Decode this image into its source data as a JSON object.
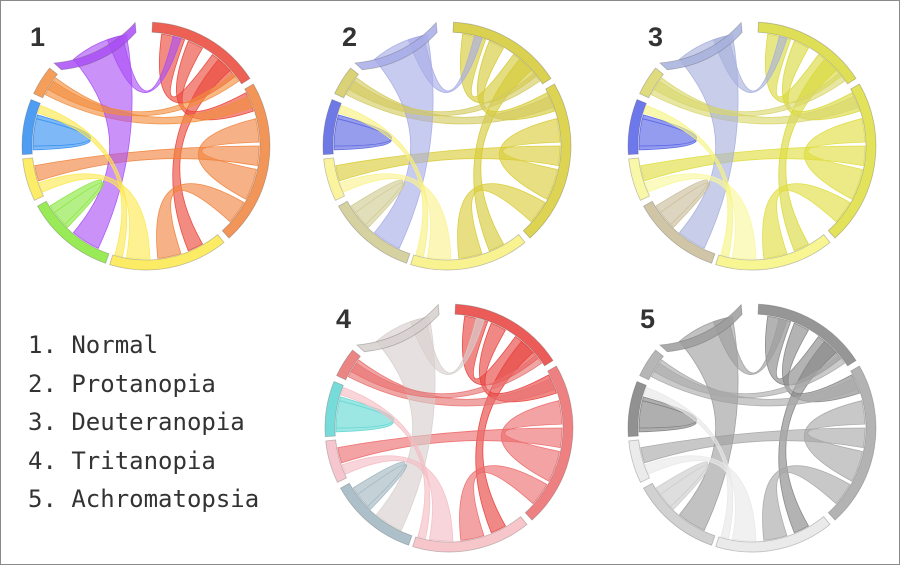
{
  "panels": [
    {
      "number": "1",
      "segment_colors": [
        "#a94ef6",
        "#ea4436",
        "#f0823c",
        "#fbe74a",
        "#86e63a",
        "#fbe94e",
        "#2f8cf1",
        "#f28d3c"
      ]
    },
    {
      "number": "2",
      "segment_colors": [
        "#a7abe6",
        "#d4c933",
        "#d8cc36",
        "#f8f07c",
        "#cfc98f",
        "#faf28e",
        "#5561e0",
        "#d3ca5e"
      ]
    },
    {
      "number": "3",
      "segment_colors": [
        "#a6b0dc",
        "#d9d83a",
        "#dedd3e",
        "#f6f480",
        "#c8bb97",
        "#f8f79a",
        "#5360e6",
        "#d9d66a"
      ]
    },
    {
      "number": "4",
      "segment_colors": [
        "#d6cfcd",
        "#e7403c",
        "#ec6a6c",
        "#f4bcc2",
        "#9fb5bf",
        "#f3bcc4",
        "#5fd6d2",
        "#e8706f"
      ]
    },
    {
      "number": "5",
      "segment_colors": [
        "#9c9c9c",
        "#848484",
        "#a6a6a6",
        "#e6e6e6",
        "#c9c9c9",
        "#e8e8e8",
        "#7e7e7e",
        "#a9a9a9"
      ]
    }
  ],
  "legend": [
    "1. Normal",
    "2. Protanopia",
    "3. Deuteranopia",
    "4. Tritanopia",
    "5. Achromatopsia"
  ]
}
